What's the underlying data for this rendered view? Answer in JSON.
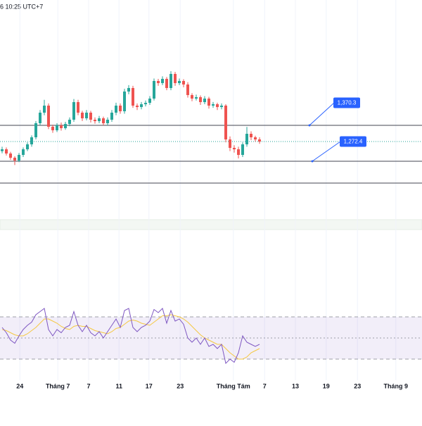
{
  "chart_data": {
    "type": "candlestick",
    "title": "6 10:25 UTC+7",
    "xlim": [
      -0.5,
      99.5
    ],
    "xticks": [
      {
        "value": 4.2,
        "label": "24"
      },
      {
        "value": 13.2,
        "label": "Tháng 7"
      },
      {
        "value": 20.5,
        "label": "7"
      },
      {
        "value": 27.7,
        "label": "11"
      },
      {
        "value": 34.8,
        "label": "17"
      },
      {
        "value": 42.2,
        "label": "23"
      },
      {
        "value": 54.8,
        "label": "Tháng Tám"
      },
      {
        "value": 62.2,
        "label": "7"
      },
      {
        "value": 69.5,
        "label": "13"
      },
      {
        "value": 76.8,
        "label": "19"
      },
      {
        "value": 84.2,
        "label": "23"
      },
      {
        "value": 93.3,
        "label": "Tháng 9"
      }
    ],
    "ylim": [
      1136.1,
      1712.1
    ],
    "up_color": "#26a69a",
    "down_color": "#ef5350",
    "candles": [
      [
        1300,
        1312,
        1294,
        1305
      ],
      [
        1305,
        1310,
        1288,
        1293.5
      ],
      [
        1293.5,
        1298,
        1276,
        1282
      ],
      [
        1282,
        1286,
        1262,
        1274.3
      ],
      [
        1274.3,
        1295,
        1270,
        1289.7
      ],
      [
        1289.7,
        1310,
        1284,
        1305
      ],
      [
        1305,
        1324,
        1300,
        1318.5
      ],
      [
        1318.5,
        1343,
        1312,
        1337.7
      ],
      [
        1337.7,
        1382,
        1332,
        1376.1
      ],
      [
        1376.1,
        1412,
        1370,
        1404.9
      ],
      [
        1404.9,
        1440,
        1398,
        1424.1
      ],
      [
        1424.1,
        1430,
        1360,
        1366.5
      ],
      [
        1366.5,
        1372,
        1350,
        1356.9
      ],
      [
        1356.9,
        1376,
        1352,
        1370.3
      ],
      [
        1370.3,
        1378,
        1356,
        1362.6
      ],
      [
        1362.6,
        1380,
        1358,
        1374.1
      ],
      [
        1374.1,
        1392,
        1368,
        1385.7
      ],
      [
        1385.7,
        1442,
        1380,
        1433.7
      ],
      [
        1433.7,
        1440,
        1398,
        1404.9
      ],
      [
        1404.9,
        1410,
        1382,
        1389.5
      ],
      [
        1389.5,
        1412,
        1384,
        1404.9
      ],
      [
        1404.9,
        1410,
        1378,
        1385.7
      ],
      [
        1385.7,
        1392,
        1375,
        1381.8
      ],
      [
        1381.8,
        1396,
        1376,
        1389.5
      ],
      [
        1389.5,
        1394,
        1370,
        1376.1
      ],
      [
        1376.1,
        1392,
        1370,
        1385.7
      ],
      [
        1385.7,
        1412,
        1380,
        1404.9
      ],
      [
        1404.9,
        1432,
        1398,
        1424.1
      ],
      [
        1424.1,
        1430,
        1402,
        1408.7
      ],
      [
        1408.7,
        1470,
        1402,
        1462.5
      ],
      [
        1462.5,
        1480,
        1455,
        1472.1
      ],
      [
        1472.1,
        1478,
        1418,
        1424.1
      ],
      [
        1424.1,
        1430,
        1412,
        1420.2
      ],
      [
        1420.2,
        1434,
        1414,
        1427.9
      ],
      [
        1427.9,
        1438,
        1422,
        1431.7
      ],
      [
        1431.7,
        1450,
        1426,
        1443.3
      ],
      [
        1443.3,
        1498,
        1438,
        1491.3
      ],
      [
        1491.3,
        1497,
        1478,
        1485.5
      ],
      [
        1485.5,
        1504,
        1480,
        1497
      ],
      [
        1497,
        1502,
        1466,
        1472.1
      ],
      [
        1472.1,
        1518,
        1466,
        1510.5
      ],
      [
        1510.5,
        1516,
        1478,
        1485.5
      ],
      [
        1485.5,
        1498,
        1480,
        1491.3
      ],
      [
        1491.3,
        1496,
        1474,
        1481.7
      ],
      [
        1481.7,
        1488,
        1446,
        1452.9
      ],
      [
        1452.9,
        1458,
        1436,
        1443.3
      ],
      [
        1443.3,
        1454,
        1438,
        1447.1
      ],
      [
        1447.1,
        1452,
        1426,
        1433.7
      ],
      [
        1433.7,
        1450,
        1428,
        1443.3
      ],
      [
        1443.3,
        1448,
        1416,
        1424.1
      ],
      [
        1424.1,
        1434,
        1418,
        1427.9
      ],
      [
        1427.9,
        1432,
        1412,
        1420.2
      ],
      [
        1420.2,
        1430,
        1414,
        1424.1
      ],
      [
        1424.1,
        1428,
        1324,
        1331.9
      ],
      [
        1331.9,
        1340,
        1300,
        1308.9
      ],
      [
        1308.9,
        1316,
        1296,
        1305
      ],
      [
        1305,
        1312,
        1280,
        1289.7
      ],
      [
        1289.7,
        1324,
        1284,
        1318.5
      ],
      [
        1318.5,
        1366,
        1312,
        1347.3
      ],
      [
        1347.3,
        1354,
        1330,
        1337.7
      ],
      [
        1337.7,
        1342,
        1326,
        1331.9
      ],
      [
        1331.9,
        1338,
        1320,
        1326.1
      ]
    ],
    "price_lines": [
      {
        "value": 1370.3,
        "label": "1,370.3"
      },
      {
        "value": 1272.4,
        "label": "1,272.4"
      },
      {
        "value": 1213.0
      }
    ],
    "rsi": {
      "ylim": [
        20,
        90
      ],
      "levels": [
        70,
        50,
        30
      ],
      "color": "#7e57c2",
      "values": [
        60,
        55,
        48,
        45,
        52,
        58,
        62,
        65,
        72,
        75,
        78,
        58,
        52,
        58,
        55,
        60,
        62,
        75,
        62,
        56,
        62,
        55,
        52,
        56,
        50,
        56,
        62,
        68,
        60,
        76,
        78,
        60,
        56,
        60,
        62,
        66,
        77,
        74,
        78,
        64,
        76,
        66,
        68,
        63,
        50,
        46,
        50,
        44,
        50,
        42,
        44,
        40,
        44,
        26,
        30,
        27,
        36,
        52,
        46,
        44,
        42,
        44
      ],
      "ma_color": "#f5c842",
      "ma_values": [
        58,
        57,
        55,
        53,
        52,
        52,
        54,
        57,
        60,
        64,
        68,
        68,
        66,
        64,
        61,
        59,
        58,
        61,
        62,
        61,
        61,
        59,
        57,
        56,
        55,
        54,
        56,
        59,
        60,
        63,
        66,
        67,
        66,
        64,
        63,
        62,
        65,
        68,
        71,
        71,
        72,
        71,
        70,
        68,
        65,
        61,
        57,
        53,
        50,
        48,
        46,
        44,
        44,
        40,
        36,
        33,
        30,
        30,
        32,
        36,
        38,
        40
      ]
    }
  }
}
